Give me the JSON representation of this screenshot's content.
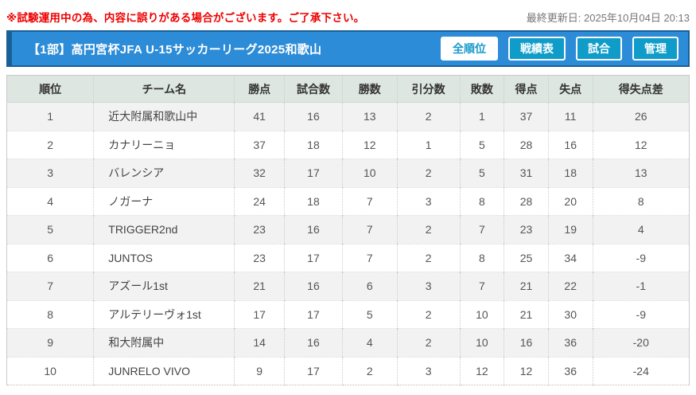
{
  "notice": {
    "text": "※試験運用中の為、内容に誤りがある場合がございます。ご了承下さい。",
    "color": "#ee0000"
  },
  "last_updated": "最終更新日: 2025年10月04日 20:13",
  "header": {
    "title": "【1部】高円宮杯JFA U-15サッカーリーグ2025和歌山",
    "bar_color": "#2d8cd7",
    "bar_border_color": "#1a5f96",
    "buttons": [
      {
        "label": "全順位",
        "active": true
      },
      {
        "label": "戦績表",
        "active": false
      },
      {
        "label": "試合",
        "active": false
      },
      {
        "label": "管理",
        "active": false
      }
    ]
  },
  "table": {
    "columns": [
      "順位",
      "チーム名",
      "勝点",
      "試合数",
      "勝数",
      "引分数",
      "敗数",
      "得点",
      "失点",
      "得失点差"
    ],
    "column_keys": [
      "rank",
      "team",
      "points",
      "played",
      "wins",
      "draws",
      "losses",
      "goals-for",
      "goals-against",
      "goal-diff"
    ],
    "rows": [
      [
        "1",
        "近大附属和歌山中",
        "41",
        "16",
        "13",
        "2",
        "1",
        "37",
        "11",
        "26"
      ],
      [
        "2",
        "カナリーニョ",
        "37",
        "18",
        "12",
        "1",
        "5",
        "28",
        "16",
        "12"
      ],
      [
        "3",
        "バレンシア",
        "32",
        "17",
        "10",
        "2",
        "5",
        "31",
        "18",
        "13"
      ],
      [
        "4",
        "ノガーナ",
        "24",
        "18",
        "7",
        "3",
        "8",
        "28",
        "20",
        "8"
      ],
      [
        "5",
        "TRIGGER2nd",
        "23",
        "16",
        "7",
        "2",
        "7",
        "23",
        "19",
        "4"
      ],
      [
        "6",
        "JUNTOS",
        "23",
        "17",
        "7",
        "2",
        "8",
        "25",
        "34",
        "-9"
      ],
      [
        "7",
        "アズール1st",
        "21",
        "16",
        "6",
        "3",
        "7",
        "21",
        "22",
        "-1"
      ],
      [
        "8",
        "アルテリーヴォ1st",
        "17",
        "17",
        "5",
        "2",
        "10",
        "21",
        "30",
        "-9"
      ],
      [
        "9",
        "和大附属中",
        "14",
        "16",
        "4",
        "2",
        "10",
        "16",
        "36",
        "-20"
      ],
      [
        "10",
        "JUNRELO VIVO",
        "9",
        "17",
        "2",
        "3",
        "12",
        "12",
        "36",
        "-24"
      ]
    ]
  }
}
